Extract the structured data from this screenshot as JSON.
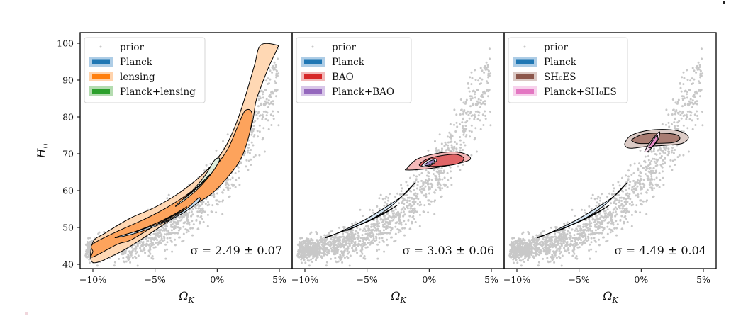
{
  "chart_data": {
    "type": "scatter",
    "layout": "three panels side by side, shared y-axis",
    "ylabel": "H_0",
    "xlabel": "Ω_K",
    "xlim": [
      -11,
      6
    ],
    "ylim": [
      37.5,
      103
    ],
    "xticks": [
      -10,
      -5,
      0,
      5
    ],
    "xtick_labels": [
      "−10%",
      "−5%",
      "0%",
      "5%"
    ],
    "yticks": [
      40,
      50,
      60,
      70,
      80,
      90,
      100
    ],
    "ytick_labels": [
      "40",
      "50",
      "60",
      "70",
      "80",
      "90",
      "100"
    ],
    "prior_color": "#c8c8c8",
    "panels": [
      {
        "legend_position": "top-left",
        "legend": [
          {
            "label": "prior",
            "kind": "dot",
            "color": "#c8c8c8"
          },
          {
            "label": "Planck",
            "kind": "patch",
            "color": "#1f77b4",
            "light": "#aecde6"
          },
          {
            "label": "lensing",
            "kind": "patch",
            "color": "#ff7f0e",
            "light": "#ffd3ac"
          },
          {
            "label": "Planck+lensing",
            "kind": "patch",
            "color": "#2ca02c",
            "light": "#b4dcb0"
          }
        ],
        "annotation": "σ = 2.49 ± 0.07",
        "contours": [
          {
            "name": "lensing-95",
            "fill": "#ffd8b4",
            "stroke": "#000",
            "points": [
              [
                -10,
                46
              ],
              [
                -9,
                48.5
              ],
              [
                -7,
                52.5
              ],
              [
                -5,
                55.5
              ],
              [
                -3,
                59.5
              ],
              [
                -1,
                65
              ],
              [
                0.5,
                71
              ],
              [
                1.5,
                78
              ],
              [
                2.3,
                86
              ],
              [
                3,
                94
              ],
              [
                3.5,
                99.5
              ],
              [
                4.8,
                99.5
              ],
              [
                4.8,
                98.3
              ],
              [
                4.2,
                94
              ],
              [
                3.5,
                88
              ],
              [
                3.1,
                84
              ],
              [
                2.8,
                78
              ],
              [
                2,
                71
              ],
              [
                0.8,
                65
              ],
              [
                -0.5,
                60
              ],
              [
                -2,
                56
              ],
              [
                -4,
                51.5
              ],
              [
                -6,
                47
              ],
              [
                -8,
                43
              ],
              [
                -10,
                40.5
              ]
            ]
          },
          {
            "name": "lensing-68",
            "fill": "#fda35c",
            "stroke": "#000",
            "points": [
              [
                -10,
                43.5
              ],
              [
                -10,
                45.5
              ],
              [
                -8,
                49
              ],
              [
                -6,
                52
              ],
              [
                -4,
                55.5
              ],
              [
                -2,
                60
              ],
              [
                -0.5,
                65
              ],
              [
                0.8,
                71
              ],
              [
                1.6,
                77
              ],
              [
                2.2,
                81.5
              ],
              [
                2.7,
                81.7
              ],
              [
                2.8,
                79
              ],
              [
                2.4,
                73
              ],
              [
                1.8,
                68
              ],
              [
                0.8,
                63.5
              ],
              [
                -0.5,
                59
              ],
              [
                -2.5,
                55
              ],
              [
                -5,
                50.5
              ],
              [
                -7,
                46.5
              ],
              [
                -8,
                45.5
              ],
              [
                -10,
                42
              ]
            ]
          },
          {
            "name": "planck-95",
            "fill": "#c8dff0",
            "stroke": "#000",
            "points": [
              [
                -8,
                47.5
              ],
              [
                -6,
                49.5
              ],
              [
                -4,
                52
              ],
              [
                -2.5,
                55
              ],
              [
                -1.5,
                58
              ],
              [
                -1.5,
                57
              ],
              [
                -2.7,
                54
              ],
              [
                -4.5,
                51
              ],
              [
                -6.5,
                48.5
              ],
              [
                -8,
                47.3
              ]
            ]
          },
          {
            "name": "planck-68",
            "fill": "#5b8ec2",
            "stroke": "#000",
            "points": [
              [
                -6.5,
                49
              ],
              [
                -5,
                51
              ],
              [
                -3.5,
                53.5
              ],
              [
                -2.5,
                55.5
              ],
              [
                -2.7,
                55
              ],
              [
                -4,
                52.5
              ],
              [
                -5.5,
                50.3
              ],
              [
                -6.5,
                48.8
              ]
            ]
          },
          {
            "name": "combined-95",
            "fill": "#dfeedd",
            "stroke": "#000",
            "points": [
              [
                -3.3,
                56
              ],
              [
                -2,
                60
              ],
              [
                -1,
                64
              ],
              [
                -0.2,
                68.3
              ],
              [
                0.2,
                68.4
              ],
              [
                -0.5,
                64.5
              ],
              [
                -1.7,
                60
              ],
              [
                -3,
                56.5
              ]
            ]
          },
          {
            "name": "combined-68",
            "fill": "#6aaa5e",
            "stroke": "#000",
            "points": [
              [
                -2.6,
                58
              ],
              [
                -1.6,
                61
              ],
              [
                -0.7,
                64
              ],
              [
                -0.5,
                64.5
              ],
              [
                -0.9,
                63
              ],
              [
                -1.7,
                60.5
              ],
              [
                -2.5,
                58.2
              ]
            ]
          }
        ]
      },
      {
        "legend_position": "top-left",
        "legend": [
          {
            "label": "prior",
            "kind": "dot",
            "color": "#c8c8c8"
          },
          {
            "label": "Planck",
            "kind": "patch",
            "color": "#1f77b4",
            "light": "#aecde6"
          },
          {
            "label": "BAO",
            "kind": "patch",
            "color": "#d62728",
            "light": "#f1b8b9"
          },
          {
            "label": "Planck+BAO",
            "kind": "patch",
            "color": "#9467bd",
            "light": "#d8c6e8"
          }
        ],
        "annotation": "σ = 3.03 ± 0.06",
        "contours": [
          {
            "name": "planck-95",
            "fill": "#d4e5f3",
            "stroke": "#000",
            "points": [
              [
                -8.2,
                47.5
              ],
              [
                -6.5,
                49.5
              ],
              [
                -4.5,
                52.5
              ],
              [
                -2.8,
                56.5
              ],
              [
                -1.2,
                62
              ],
              [
                -2,
                59
              ],
              [
                -3.5,
                55.5
              ],
              [
                -5.5,
                51.5
              ],
              [
                -7.5,
                48.3
              ],
              [
                -8.2,
                47.3
              ]
            ]
          },
          {
            "name": "planck-68",
            "fill": "#5b8ec2",
            "stroke": "#000",
            "points": [
              [
                -6.5,
                49.5
              ],
              [
                -5,
                51.5
              ],
              [
                -3.5,
                54
              ],
              [
                -2.6,
                56
              ],
              [
                -2.9,
                55.3
              ],
              [
                -4.2,
                53
              ],
              [
                -5.6,
                50.7
              ],
              [
                -6.5,
                49.3
              ]
            ]
          },
          {
            "name": "bao-95",
            "fill": "#f4b9b9",
            "stroke": "#000",
            "points": [
              [
                -1.8,
                66
              ],
              [
                -1,
                68.5
              ],
              [
                0.5,
                70
              ],
              [
                2,
                70.5
              ],
              [
                3,
                69.8
              ],
              [
                3.3,
                68.5
              ],
              [
                2.5,
                67.5
              ],
              [
                1,
                66.5
              ],
              [
                -0.5,
                65.8
              ],
              [
                -1.8,
                65.6
              ]
            ]
          },
          {
            "name": "bao-68",
            "fill": "#e06567",
            "stroke": "#000",
            "points": [
              [
                -0.8,
                67
              ],
              [
                -0.2,
                68.5
              ],
              [
                1,
                69.5
              ],
              [
                2.2,
                69.8
              ],
              [
                2.8,
                68.7
              ],
              [
                2.3,
                67.3
              ],
              [
                1,
                66.7
              ],
              [
                -0.3,
                66.6
              ]
            ]
          },
          {
            "name": "combined-95",
            "fill": "#f0eaf7",
            "stroke": "#000",
            "points": [
              [
                -0.6,
                66.8
              ],
              [
                -0.2,
                68.1
              ],
              [
                0.4,
                68.7
              ],
              [
                0.6,
                68.2
              ],
              [
                0.2,
                67.0
              ],
              [
                -0.3,
                66.5
              ]
            ]
          },
          {
            "name": "combined-68",
            "fill": "#9b82c4",
            "stroke": "#000",
            "points": [
              [
                -0.35,
                67.0
              ],
              [
                0,
                67.9
              ],
              [
                0.35,
                68.3
              ],
              [
                0.4,
                67.9
              ],
              [
                0.05,
                67.0
              ],
              [
                -0.2,
                66.8
              ]
            ]
          }
        ]
      },
      {
        "legend_position": "top-left",
        "legend": [
          {
            "label": "prior",
            "kind": "dot",
            "color": "#c8c8c8"
          },
          {
            "label": "Planck",
            "kind": "patch",
            "color": "#1f77b4",
            "light": "#aecde6"
          },
          {
            "label": "SH₀ES",
            "kind": "patch",
            "color": "#8c564b",
            "light": "#dbc9c5"
          },
          {
            "label": "Planck+SH₀ES",
            "kind": "patch",
            "color": "#e377c2",
            "light": "#f7d2ec"
          }
        ],
        "annotation": "σ = 4.49 ± 0.04",
        "contours": [
          {
            "name": "planck-95",
            "fill": "#d4e5f3",
            "stroke": "#000",
            "points": [
              [
                -8.2,
                47.5
              ],
              [
                -6.5,
                49.5
              ],
              [
                -4.5,
                52.5
              ],
              [
                -2.8,
                56.5
              ],
              [
                -1.2,
                62
              ],
              [
                -2,
                59
              ],
              [
                -3.5,
                55.5
              ],
              [
                -5.5,
                51.5
              ],
              [
                -7.5,
                48.3
              ],
              [
                -8.2,
                47.3
              ]
            ]
          },
          {
            "name": "planck-68",
            "fill": "#5b8ec2",
            "stroke": "#000",
            "points": [
              [
                -6.5,
                49.5
              ],
              [
                -5,
                51.5
              ],
              [
                -3.5,
                54
              ],
              [
                -2.6,
                56
              ],
              [
                -2.9,
                55.3
              ],
              [
                -4.2,
                53
              ],
              [
                -5.6,
                50.7
              ],
              [
                -6.5,
                49.3
              ]
            ]
          },
          {
            "name": "shoes-95",
            "fill": "#dccbc6",
            "stroke": "#000",
            "points": [
              [
                -1.3,
                73
              ],
              [
                -0.8,
                75
              ],
              [
                0.5,
                76.3
              ],
              [
                2,
                76.6
              ],
              [
                3.2,
                76
              ],
              [
                3.8,
                74.5
              ],
              [
                3.3,
                72.8
              ],
              [
                2,
                72.3
              ],
              [
                0.5,
                72
              ],
              [
                -0.7,
                71.5
              ],
              [
                -1.2,
                71.8
              ]
            ]
          },
          {
            "name": "shoes-68",
            "fill": "#a97c72",
            "stroke": "#000",
            "points": [
              [
                -0.7,
                74
              ],
              [
                0.2,
                75.3
              ],
              [
                1.5,
                75.6
              ],
              [
                2.8,
                75.2
              ],
              [
                3.1,
                74
              ],
              [
                2.5,
                73
              ],
              [
                1,
                72.8
              ],
              [
                -0.2,
                72.8
              ],
              [
                -0.7,
                73.4
              ]
            ]
          },
          {
            "name": "combined-95",
            "fill": "#fbe1f3",
            "stroke": "#000",
            "points": [
              [
                0.3,
                70.8
              ],
              [
                0.8,
                73.5
              ],
              [
                1.3,
                75.5
              ],
              [
                1.5,
                75.8
              ],
              [
                1.3,
                73.5
              ],
              [
                0.6,
                70.8
              ],
              [
                0.35,
                70.5
              ]
            ]
          },
          {
            "name": "combined-68",
            "fill": "#e88cc9",
            "stroke": "#000",
            "points": [
              [
                0.6,
                71.8
              ],
              [
                0.95,
                73.6
              ],
              [
                1.3,
                75.1
              ],
              [
                1.25,
                73.6
              ],
              [
                0.85,
                71.8
              ]
            ]
          }
        ]
      }
    ]
  }
}
